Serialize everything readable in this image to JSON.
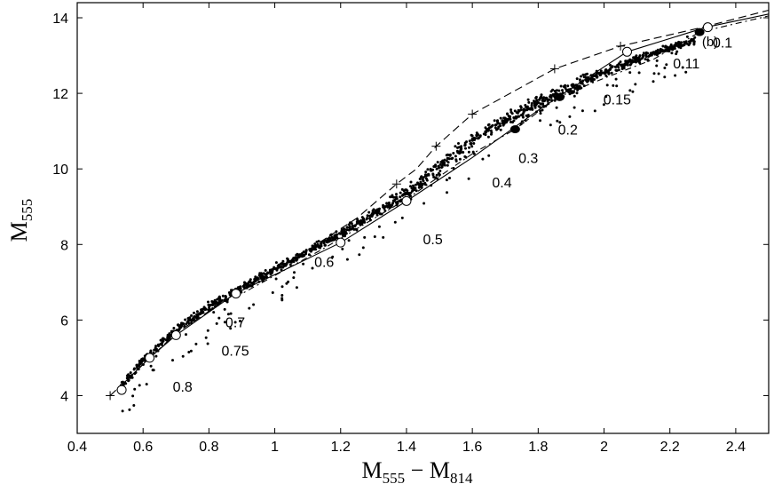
{
  "chart_data": {
    "type": "scatter",
    "panel_label": "(b)",
    "xlabel": {
      "main": "M",
      "sub1": "555",
      "minus": " − M",
      "sub2": "814"
    },
    "ylabel": {
      "main": "M",
      "sub": "555"
    },
    "xlim": [
      0.4,
      2.5
    ],
    "ylim": [
      14.4,
      3.0
    ],
    "y_inverted": true,
    "grid": false,
    "x_ticks": [
      0.4,
      0.6,
      0.8,
      1.0,
      1.2,
      1.4,
      1.6,
      1.8,
      2.0,
      2.2,
      2.4
    ],
    "x_tick_labels": [
      "0.4",
      "0.6",
      "0.8",
      "1",
      "1.2",
      "1.4",
      "1.6",
      "1.8",
      "2",
      "2.2",
      "2.4"
    ],
    "y_ticks": [
      4,
      6,
      8,
      10,
      12,
      14
    ],
    "y_tick_labels": [
      "4",
      "6",
      "8",
      "10",
      "12",
      "14"
    ],
    "mass_labels": [
      {
        "text": "0.8",
        "x": 0.72,
        "y": 4.25
      },
      {
        "text": "0.75",
        "x": 0.88,
        "y": 5.2
      },
      {
        "text": "0.7",
        "x": 0.88,
        "y": 5.95
      },
      {
        "text": "0.6",
        "x": 1.15,
        "y": 7.55
      },
      {
        "text": "0.5",
        "x": 1.48,
        "y": 8.15
      },
      {
        "text": "0.4",
        "x": 1.69,
        "y": 9.65
      },
      {
        "text": "0.3",
        "x": 1.77,
        "y": 10.3
      },
      {
        "text": "0.2",
        "x": 1.89,
        "y": 11.05
      },
      {
        "text": "0.15",
        "x": 2.04,
        "y": 11.85
      },
      {
        "text": "0.11",
        "x": 2.25,
        "y": 12.8
      },
      {
        "text": "0.1",
        "x": 2.36,
        "y": 13.35
      }
    ],
    "series": [
      {
        "style": "solid",
        "points": [
          [
            0.52,
            4.15
          ],
          [
            0.62,
            5.0
          ],
          [
            0.7,
            5.6
          ],
          [
            0.88,
            6.7
          ],
          [
            1.0,
            7.2
          ],
          [
            1.2,
            8.05
          ],
          [
            1.4,
            9.15
          ],
          [
            1.6,
            10.3
          ],
          [
            1.8,
            11.55
          ],
          [
            2.0,
            12.7
          ],
          [
            2.07,
            13.1
          ],
          [
            2.2,
            13.45
          ],
          [
            2.31,
            13.75
          ],
          [
            2.5,
            14.1
          ]
        ],
        "open_circles": [
          [
            0.535,
            4.15
          ],
          [
            0.62,
            5.0
          ],
          [
            0.7,
            5.6
          ],
          [
            0.882,
            6.7
          ],
          [
            1.2,
            8.05
          ],
          [
            1.4,
            9.15
          ],
          [
            2.07,
            13.1
          ],
          [
            2.315,
            13.75
          ]
        ]
      },
      {
        "style": "dashed",
        "points": [
          [
            0.5,
            4.0
          ],
          [
            0.7,
            5.65
          ],
          [
            0.88,
            6.7
          ],
          [
            1.1,
            7.85
          ],
          [
            1.25,
            8.7
          ],
          [
            1.37,
            9.6
          ],
          [
            1.43,
            10.0
          ],
          [
            1.49,
            10.6
          ],
          [
            1.6,
            11.45
          ],
          [
            1.85,
            12.65
          ],
          [
            2.05,
            13.25
          ],
          [
            2.3,
            13.75
          ],
          [
            2.5,
            14.2
          ]
        ],
        "plus_markers": [
          [
            0.5,
            4.0
          ],
          [
            1.37,
            9.6
          ],
          [
            1.49,
            10.6
          ],
          [
            1.6,
            11.45
          ],
          [
            1.85,
            12.65
          ],
          [
            2.05,
            13.25
          ]
        ]
      },
      {
        "style": "dash-dot",
        "points": [
          [
            0.88,
            6.6
          ],
          [
            1.15,
            7.9
          ],
          [
            1.4,
            9.2
          ],
          [
            1.6,
            10.4
          ],
          [
            1.73,
            11.05
          ],
          [
            1.86,
            11.9
          ],
          [
            2.0,
            12.4
          ],
          [
            2.15,
            12.9
          ],
          [
            2.29,
            13.62
          ],
          [
            2.5,
            14.05
          ]
        ],
        "filled_circles": [
          [
            1.73,
            11.05
          ],
          [
            1.865,
            11.9
          ],
          [
            2.29,
            13.62
          ]
        ]
      }
    ]
  }
}
